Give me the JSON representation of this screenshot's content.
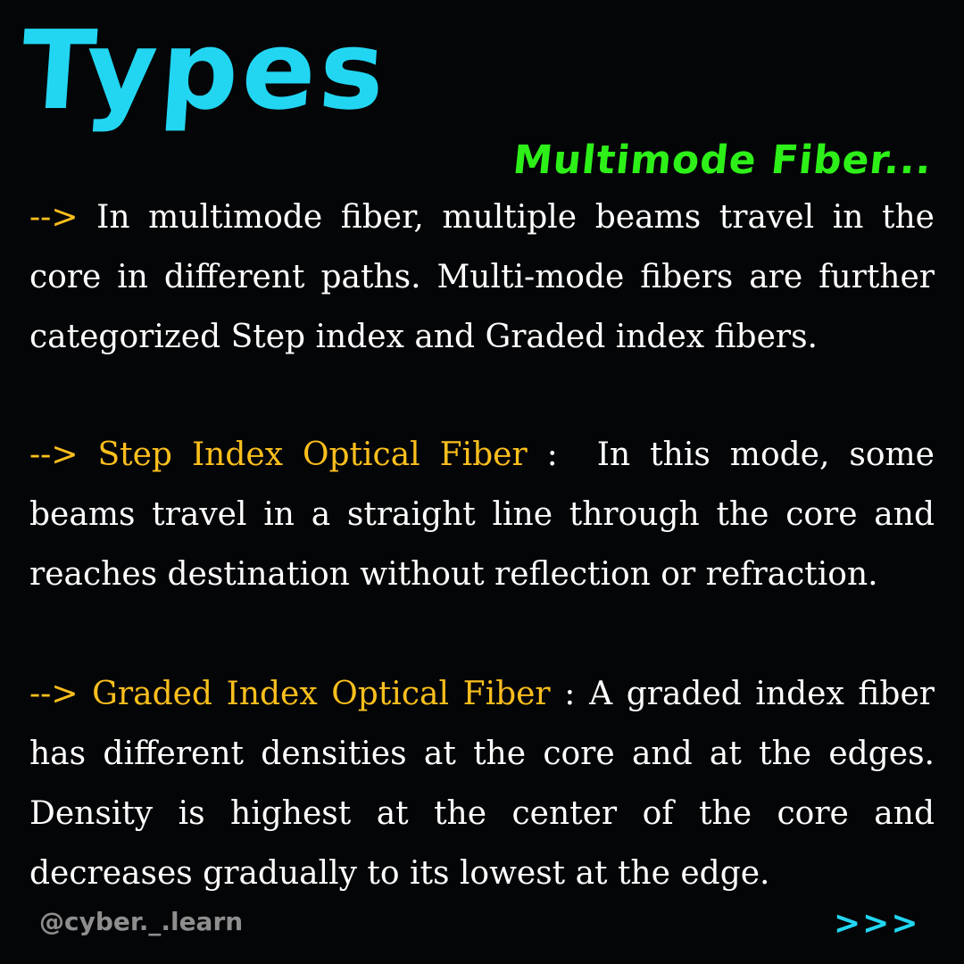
{
  "header": {
    "title": "Types",
    "subtitle": "Multimode Fiber..."
  },
  "paragraphs": [
    {
      "arrow": "-->",
      "term": "",
      "separator": "",
      "text": "In multimode fiber, multiple beams travel in the core in different paths. Multi-mode fibers are further categorized Step index and Graded index fibers."
    },
    {
      "arrow": "-->",
      "term": "Step Index Optical Fiber",
      "separator": " :",
      "text": "In this mode, some beams travel in a straight line through the core and reaches destination without reflection or refraction."
    },
    {
      "arrow": "-->",
      "term": "Graded Index Optical Fiber",
      "separator": " :",
      "text": "A graded index fiber has different densities at the core and at the edges. Density is highest at the center of the core and decreases gradually to its lowest at the edge."
    }
  ],
  "footer": {
    "handle": "@cyber._.learn",
    "next_label": ">>>"
  },
  "colors": {
    "background": "#040507",
    "title": "#22d6f2",
    "subtitle": "#2ef019",
    "accent": "#fbbf1d",
    "body_text": "#ffffff",
    "handle": "#8e8e8e"
  }
}
